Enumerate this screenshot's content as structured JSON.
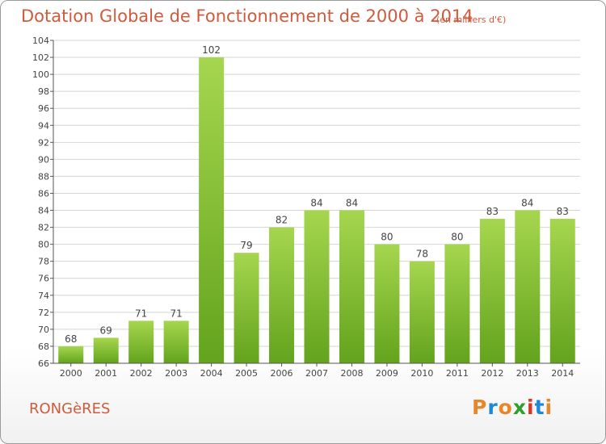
{
  "title": "Dotation Globale de Fonctionnement de 2000 à 2014",
  "subtitle": "(en milliers d'€)",
  "commune": "RONGèRES",
  "logo": {
    "letters": [
      "P",
      "r",
      "o",
      "x",
      "i",
      "t",
      "i"
    ],
    "colors": [
      "#e8862a",
      "#1e88d8",
      "#e8862a",
      "#2e9e2e",
      "#d8352a",
      "#1e88d8",
      "#e8862a"
    ]
  },
  "colors": {
    "bar_top": "#a6d64f",
    "bar_bottom": "#63a31d",
    "grid": "#d4d4d4",
    "axis": "#555555",
    "title": "#d05a3c"
  },
  "chart_data": {
    "type": "bar",
    "categories": [
      "2000",
      "2001",
      "2002",
      "2003",
      "2004",
      "2005",
      "2006",
      "2007",
      "2008",
      "2009",
      "2010",
      "2011",
      "2012",
      "2013",
      "2014"
    ],
    "values": [
      68,
      69,
      71,
      71,
      102,
      79,
      82,
      84,
      84,
      80,
      78,
      80,
      83,
      84,
      83
    ],
    "title": "Dotation Globale de Fonctionnement de 2000 à 2014",
    "ylim": [
      66,
      104
    ],
    "yticks": [
      66,
      68,
      70,
      72,
      74,
      76,
      78,
      80,
      82,
      84,
      86,
      88,
      90,
      92,
      94,
      96,
      98,
      100,
      102,
      104
    ],
    "grid": true,
    "data_labels": true
  }
}
